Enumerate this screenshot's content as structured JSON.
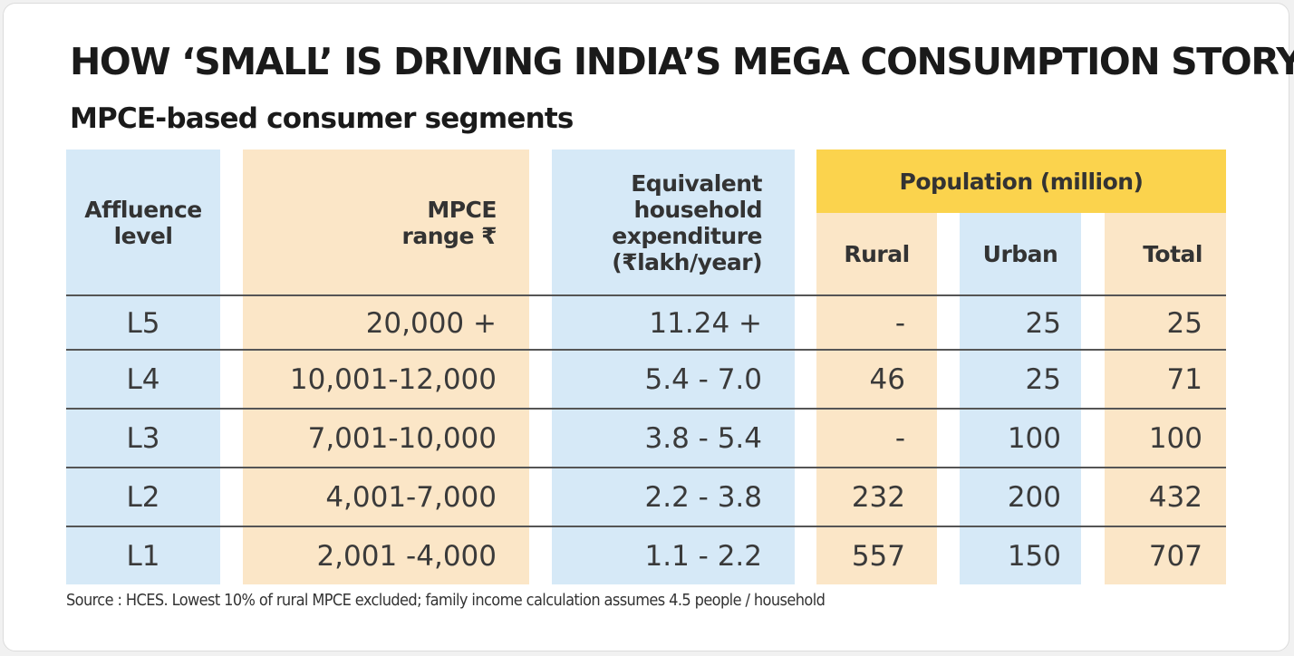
{
  "title": "HOW ‘SMALL’ IS DRIVING INDIA’S MEGA CONSUMPTION STORY",
  "subtitle": "MPCE-based consumer segments",
  "colors": {
    "blue_column": "#d6e9f7",
    "peach_column": "#fbe6c7",
    "population_band": "#fbd34d",
    "text": "#333333"
  },
  "chart_data": {
    "type": "table",
    "title": "HOW ‘SMALL’ IS DRIVING INDIA’S MEGA CONSUMPTION STORY",
    "subtitle": "MPCE-based consumer segments",
    "group_header": "Population (million)",
    "headers": {
      "affluence": [
        "Affluence",
        "level"
      ],
      "mpce": [
        "MPCE",
        "range ₹"
      ],
      "household": [
        "Equivalent",
        "household",
        "expenditure",
        "(₹lakh/year)"
      ],
      "rural": "Rural",
      "urban": "Urban",
      "total": "Total"
    },
    "rows": [
      {
        "level": "L5",
        "mpce": "20,000 +",
        "household": "11.24 +",
        "rural": "-",
        "urban": "25",
        "total": "25"
      },
      {
        "level": "L4",
        "mpce": "10,001-12,000",
        "household": "5.4 - 7.0",
        "rural": "46",
        "urban": "25",
        "total": "71"
      },
      {
        "level": "L3",
        "mpce": "7,001-10,000",
        "household": "3.8 - 5.4",
        "rural": "-",
        "urban": "100",
        "total": "100"
      },
      {
        "level": "L2",
        "mpce": "4,001-7,000",
        "household": "2.2 - 3.8",
        "rural": "232",
        "urban": "200",
        "total": "432"
      },
      {
        "level": "L1",
        "mpce": "2,001 -4,000",
        "household": "1.1 - 2.2",
        "rural": "557",
        "urban": "150",
        "total": "707"
      }
    ],
    "source": "Source : HCES. Lowest 10% of rural MPCE excluded; family income calculation assumes 4.5 people / household"
  }
}
